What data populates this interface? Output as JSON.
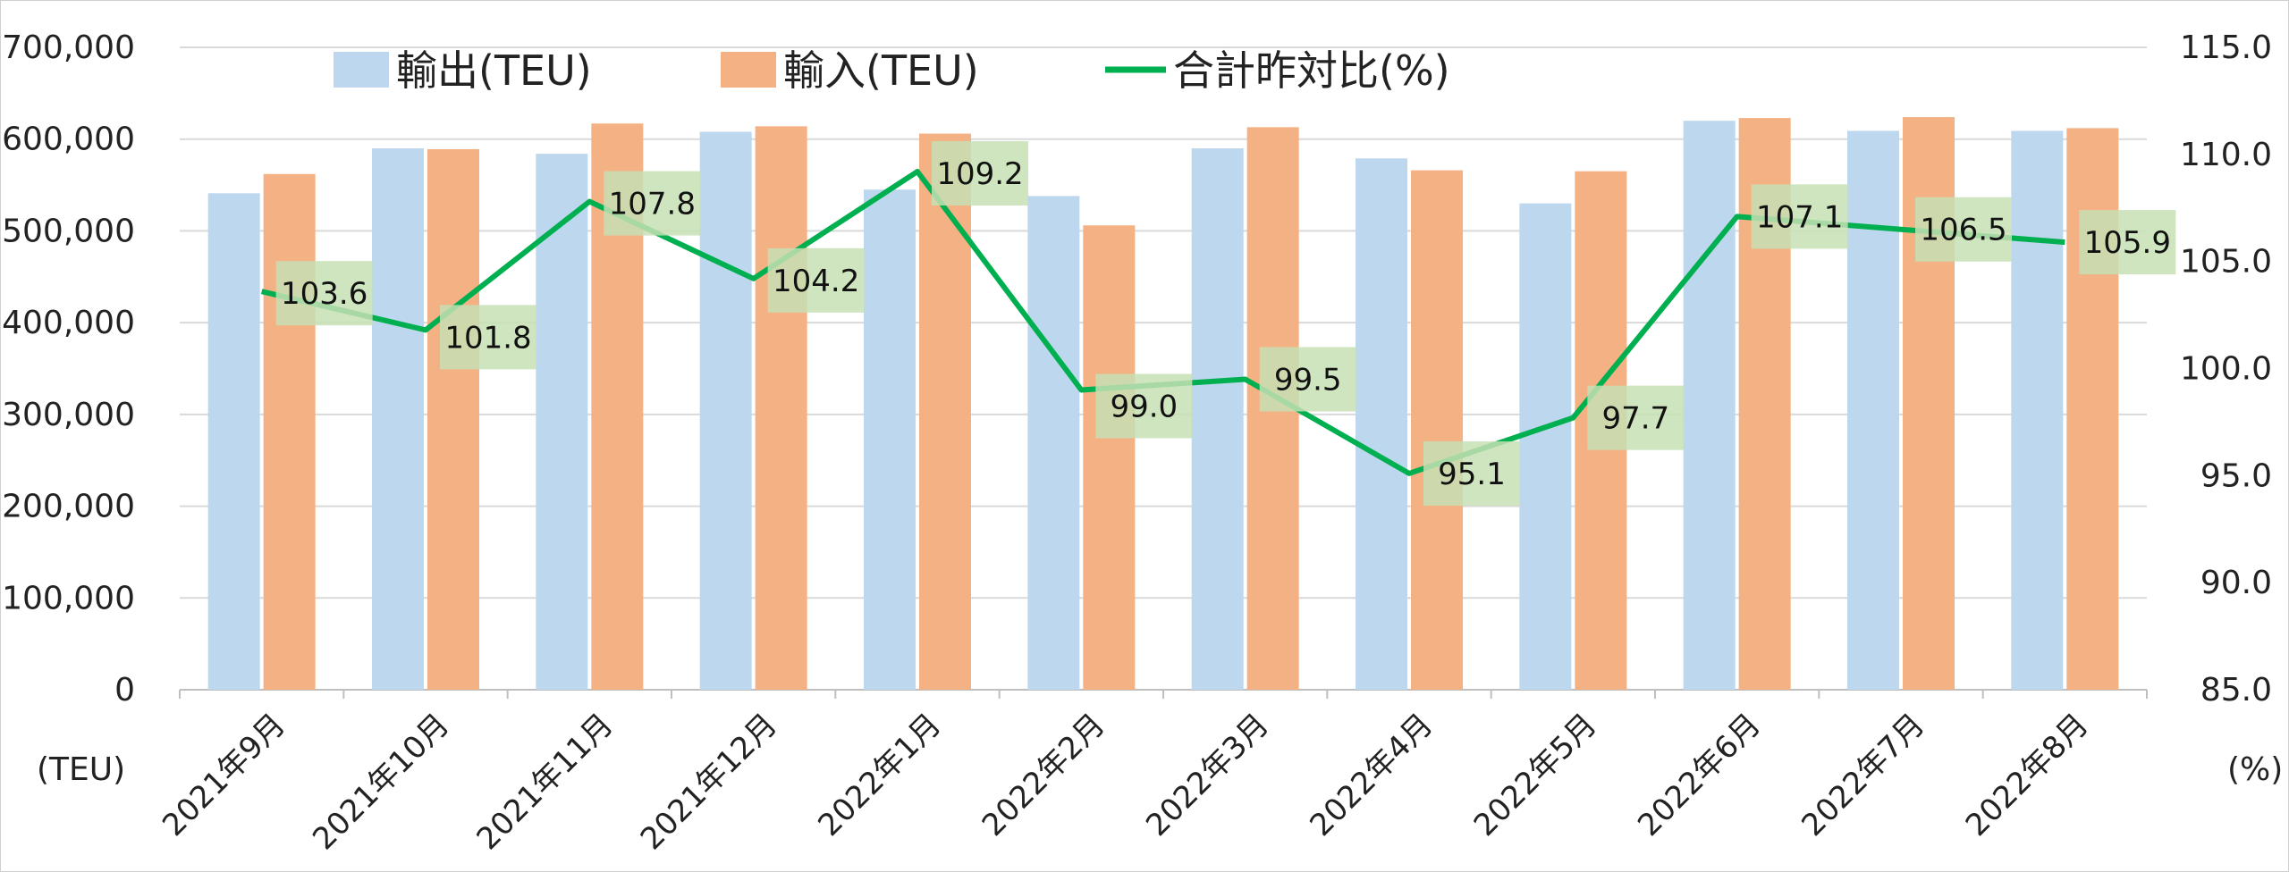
{
  "chart_data": {
    "type": "bar+line",
    "categories": [
      "2021年9月",
      "2021年10月",
      "2021年11月",
      "2021年12月",
      "2022年1月",
      "2022年2月",
      "2022年3月",
      "2022年4月",
      "2022年5月",
      "2022年6月",
      "2022年7月",
      "2022年8月"
    ],
    "series": [
      {
        "name": "輸出(TEU)",
        "type": "bar",
        "axis": "left",
        "color": "#bdd7ee",
        "values": [
          541000,
          590000,
          584000,
          608000,
          545000,
          538000,
          590000,
          579000,
          530000,
          620000,
          609000,
          609000
        ]
      },
      {
        "name": "輸入(TEU)",
        "type": "bar",
        "axis": "left",
        "color": "#f4b183",
        "values": [
          562000,
          589000,
          617000,
          614000,
          606000,
          506000,
          613000,
          566000,
          565000,
          623000,
          624000,
          612000
        ]
      },
      {
        "name": "合計昨対比(%)",
        "type": "line",
        "axis": "right",
        "color": "#00b050",
        "values": [
          103.6,
          101.8,
          107.8,
          104.2,
          109.2,
          99.0,
          99.5,
          95.1,
          97.7,
          107.1,
          106.5,
          105.9
        ],
        "labels": [
          "103.6",
          "101.8",
          "107.8",
          "104.2",
          "109.2",
          "99.0",
          "99.5",
          "95.1",
          "97.7",
          "107.1",
          "106.5",
          "105.9"
        ]
      }
    ],
    "y_left": {
      "min": 0,
      "max": 700000,
      "ticks": [
        "0",
        "100,000",
        "200,000",
        "300,000",
        "400,000",
        "500,000",
        "600,000",
        "700,000"
      ],
      "unit": "(TEU)"
    },
    "y_right": {
      "min": 85,
      "max": 115,
      "ticks": [
        "85.0",
        "90.0",
        "95.0",
        "100.0",
        "105.0",
        "110.0",
        "115.0"
      ],
      "unit": "(%)"
    },
    "grid": true,
    "legend": "top",
    "label_box_color": "#c6e0b4"
  }
}
